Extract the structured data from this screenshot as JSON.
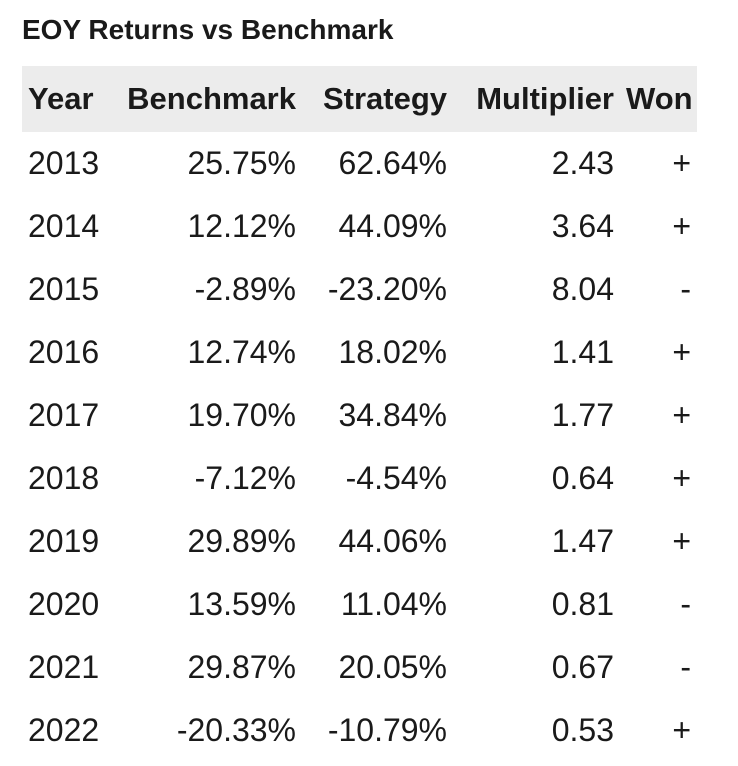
{
  "page": {
    "title": "EOY Returns vs Benchmark"
  },
  "table": {
    "columns": [
      "Year",
      "Benchmark",
      "Strategy",
      "Multiplier",
      "Won"
    ],
    "rows": [
      [
        "2013",
        "25.75%",
        "62.64%",
        "2.43",
        "+"
      ],
      [
        "2014",
        "12.12%",
        "44.09%",
        "3.64",
        "+"
      ],
      [
        "2015",
        "-2.89%",
        "-23.20%",
        "8.04",
        "-"
      ],
      [
        "2016",
        "12.74%",
        "18.02%",
        "1.41",
        "+"
      ],
      [
        "2017",
        "19.70%",
        "34.84%",
        "1.77",
        "+"
      ],
      [
        "2018",
        "-7.12%",
        "-4.54%",
        "0.64",
        "+"
      ],
      [
        "2019",
        "29.89%",
        "44.06%",
        "1.47",
        "+"
      ],
      [
        "2020",
        "13.59%",
        "11.04%",
        "0.81",
        "-"
      ],
      [
        "2021",
        "29.87%",
        "20.05%",
        "0.67",
        "-"
      ],
      [
        "2022",
        "-20.33%",
        "-10.79%",
        "0.53",
        "+"
      ]
    ]
  },
  "colors": {
    "header_bg": "#ececec",
    "text": "#1a1a1a",
    "page_bg": "#ffffff"
  },
  "chart_data": {
    "type": "table",
    "title": "EOY Returns vs Benchmark",
    "columns": [
      "Year",
      "Benchmark",
      "Strategy",
      "Multiplier",
      "Won"
    ],
    "years": [
      2013,
      2014,
      2015,
      2016,
      2017,
      2018,
      2019,
      2020,
      2021,
      2022
    ],
    "benchmark_pct": [
      25.75,
      12.12,
      -2.89,
      12.74,
      19.7,
      -7.12,
      29.89,
      13.59,
      29.87,
      -20.33
    ],
    "strategy_pct": [
      62.64,
      44.09,
      -23.2,
      18.02,
      34.84,
      -4.54,
      44.06,
      11.04,
      20.05,
      -10.79
    ],
    "multiplier": [
      2.43,
      3.64,
      8.04,
      1.41,
      1.77,
      0.64,
      1.47,
      0.81,
      0.67,
      0.53
    ],
    "won": [
      "+",
      "+",
      "-",
      "+",
      "+",
      "+",
      "+",
      "-",
      "-",
      "+"
    ]
  }
}
